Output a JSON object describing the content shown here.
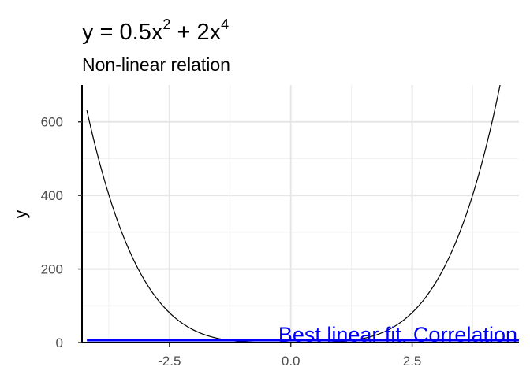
{
  "chart_data": {
    "type": "line",
    "title": {
      "prefix": "y = 0.5x",
      "exp1": "2",
      "middle": " + 2x",
      "exp2": "4"
    },
    "subtitle": "Non-linear relation",
    "xlabel": "",
    "ylabel": "y",
    "xlim": [
      -4.3,
      4.7
    ],
    "ylim": [
      0,
      700
    ],
    "x_ticks": [
      -2.5,
      0.0,
      2.5
    ],
    "x_tick_labels": [
      "-2.5",
      "0.0",
      "2.5"
    ],
    "y_ticks": [
      0,
      200,
      400,
      600
    ],
    "y_tick_labels": [
      "0",
      "200",
      "400",
      "600"
    ],
    "grid": true,
    "series": [
      {
        "kind": "curve",
        "color": "#000000",
        "x": [
          -4.2,
          -3.8,
          -3.4,
          -3.0,
          -2.6,
          -2.2,
          -1.8,
          -1.4,
          -1.0,
          -0.6,
          -0.2,
          0.2,
          0.6,
          1.0,
          1.4,
          1.8,
          2.2,
          2.6,
          3.0,
          3.4,
          3.8,
          4.2,
          4.35
        ],
        "y": [
          631.0,
          424.1,
          272.0,
          166.5,
          94.8,
          49.3,
          22.6,
          8.7,
          2.5,
          0.4,
          0.02,
          0.02,
          0.4,
          2.5,
          8.7,
          22.6,
          49.3,
          94.8,
          166.5,
          272.0,
          424.1,
          631.0,
          725.8
        ]
      },
      {
        "kind": "fit",
        "color": "#0000ff",
        "x": [
          -4.2,
          4.7
        ],
        "y": [
          6,
          6
        ]
      }
    ],
    "annotation": {
      "text": "Best linear fit. Correlation",
      "color": "#0000ff"
    }
  }
}
